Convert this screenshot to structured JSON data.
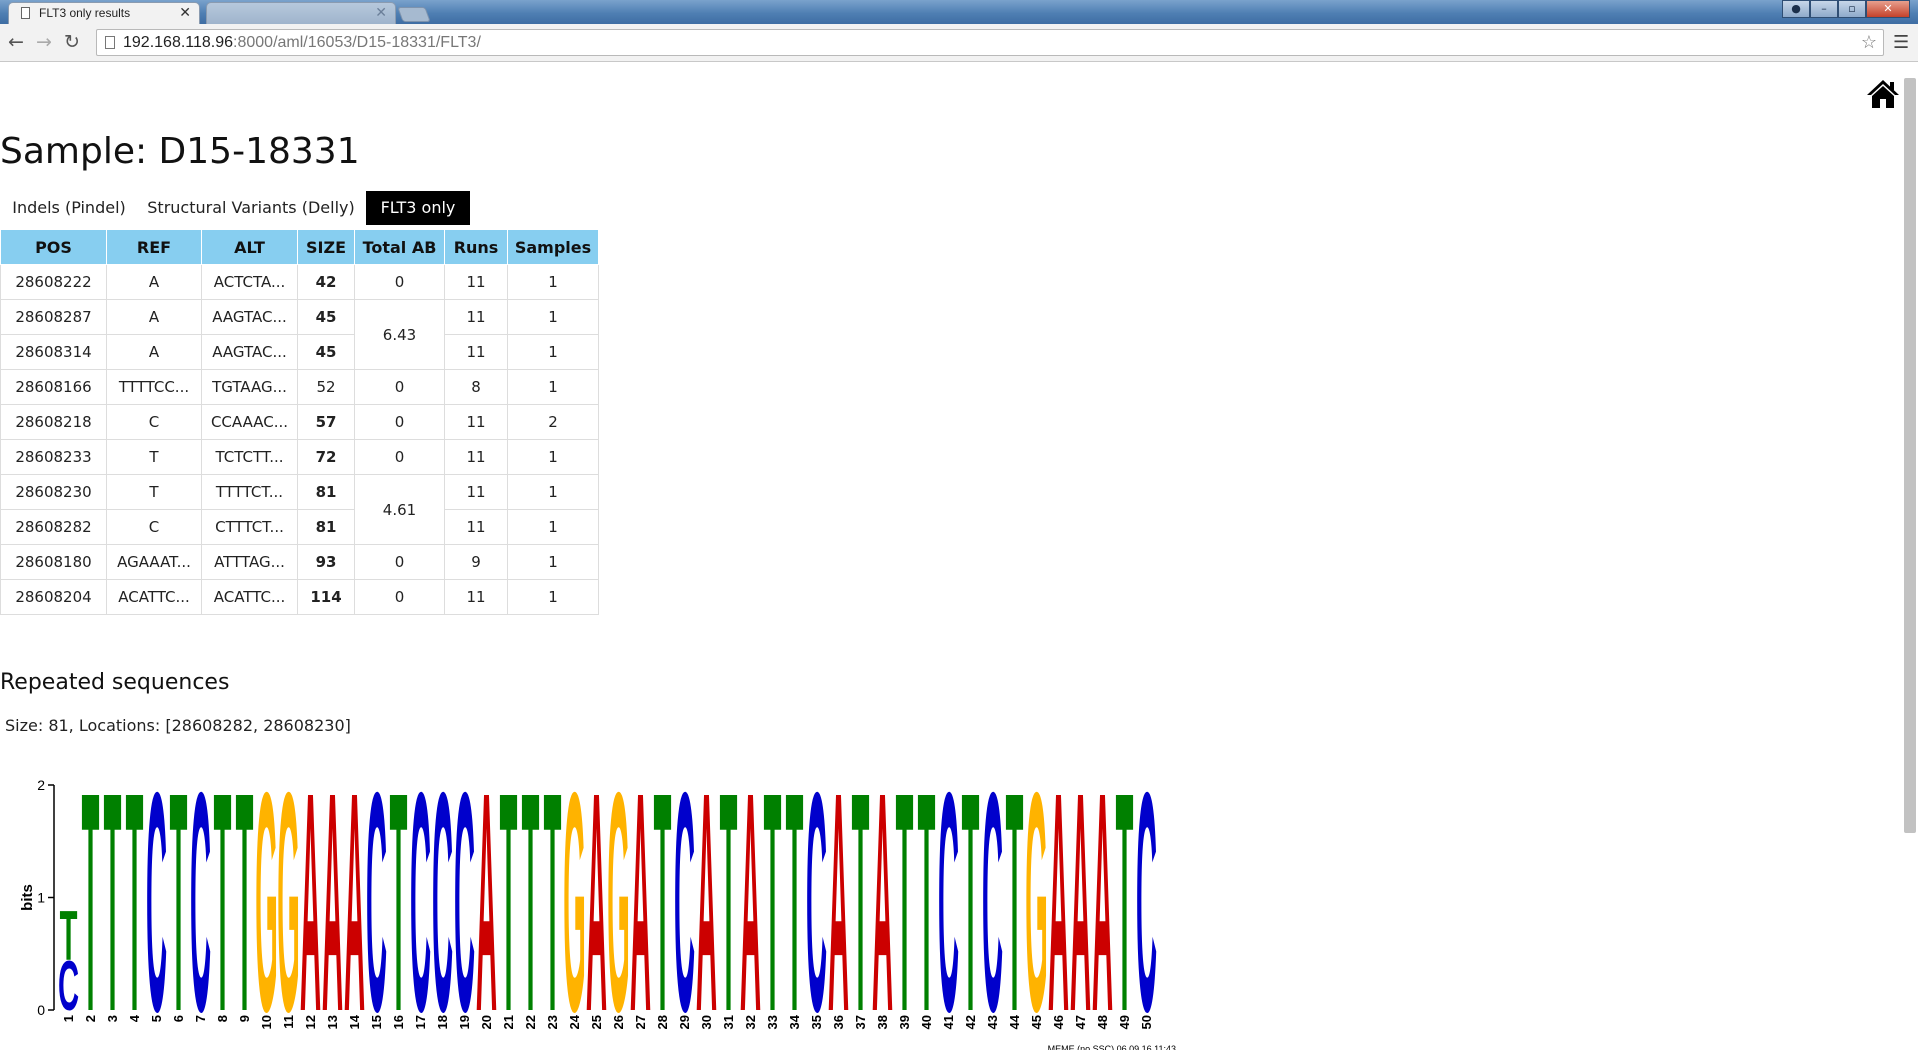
{
  "browser": {
    "active_tab_title": "FLT3 only results",
    "inactive_tab_title": "",
    "tab_close": "✕",
    "url_host": "192.168.118.96",
    "url_rest": ":8000/aml/16053/D15-18331/FLT3/",
    "back_icon": "back-arrow-icon",
    "forward_icon": "forward-arrow-icon",
    "reload_icon": "reload-icon",
    "star_icon": "star-icon",
    "menu_icon": "hamburger-menu-icon"
  },
  "page": {
    "title": "Sample: D15-18331",
    "home_icon": "home-icon",
    "tabs": [
      {
        "label": "Indels (Pindel)",
        "active": false
      },
      {
        "label": "Structural Variants (Delly)",
        "active": false
      },
      {
        "label": "FLT3 only",
        "active": true
      }
    ],
    "table": {
      "headers": [
        "POS",
        "REF",
        "ALT",
        "SIZE",
        "Total AB",
        "Runs",
        "Samples"
      ],
      "rows": [
        {
          "pos": "28608222",
          "ref": "A",
          "alt": "ACTCTA...",
          "size": "42",
          "size_link": true,
          "total_ab": "0",
          "runs": "11",
          "samples": "1"
        },
        {
          "pos": "28608287",
          "ref": "A",
          "alt": "AAGTAC...",
          "size": "45",
          "size_link": true,
          "total_ab": "6.43",
          "runs": "11",
          "samples": "1"
        },
        {
          "pos": "28608314",
          "ref": "A",
          "alt": "AAGTAC...",
          "size": "45",
          "size_link": true,
          "total_ab": "",
          "runs": "11",
          "samples": "1"
        },
        {
          "pos": "28608166",
          "ref": "TTTTCC...",
          "alt": "TGTAAG...",
          "size": "52",
          "size_link": false,
          "total_ab": "0",
          "runs": "8",
          "samples": "1"
        },
        {
          "pos": "28608218",
          "ref": "C",
          "alt": "CCAAAC...",
          "size": "57",
          "size_link": true,
          "total_ab": "0",
          "runs": "11",
          "samples": "2"
        },
        {
          "pos": "28608233",
          "ref": "T",
          "alt": "TCTCTT...",
          "size": "72",
          "size_link": true,
          "total_ab": "0",
          "runs": "11",
          "samples": "1"
        },
        {
          "pos": "28608230",
          "ref": "T",
          "alt": "TTTTCT...",
          "size": "81",
          "size_link": true,
          "total_ab": "4.61",
          "runs": "11",
          "samples": "1"
        },
        {
          "pos": "28608282",
          "ref": "C",
          "alt": "CTTTCT...",
          "size": "81",
          "size_link": true,
          "total_ab": "",
          "runs": "11",
          "samples": "1"
        },
        {
          "pos": "28608180",
          "ref": "AGAAAT...",
          "alt": "ATTTAG...",
          "size": "93",
          "size_link": true,
          "total_ab": "0",
          "runs": "9",
          "samples": "1"
        },
        {
          "pos": "28608204",
          "ref": "ACATTC...",
          "alt": "ACATTC...",
          "size": "114",
          "size_link": true,
          "total_ab": "0",
          "runs": "11",
          "samples": "1"
        }
      ]
    },
    "repeated": {
      "heading": "Repeated sequences",
      "info": "Size: 81, Locations: [28608282, 28608230]"
    }
  },
  "colors": {
    "header_bg": "#87cef0",
    "link": "#1a5a96",
    "A": "#cc0000",
    "C": "#0000cc",
    "G": "#ffb300",
    "T": "#008000"
  },
  "chart_data": {
    "type": "sequence-logo",
    "ylabel": "bits",
    "ylim": [
      0,
      2
    ],
    "yticks": [
      "0",
      "1",
      "2"
    ],
    "footer": "MEME (no SSC) 06.09.16 11:43",
    "positions": [
      "1",
      "2",
      "3",
      "4",
      "5",
      "6",
      "7",
      "8",
      "9",
      "10",
      "11",
      "12",
      "13",
      "14",
      "15",
      "16",
      "17",
      "18",
      "19",
      "20",
      "21",
      "22",
      "23",
      "24",
      "25",
      "26",
      "27",
      "28",
      "29",
      "30",
      "31",
      "32",
      "33",
      "34",
      "35",
      "36",
      "37",
      "38",
      "39",
      "40",
      "41",
      "42",
      "43",
      "44",
      "45",
      "46",
      "47",
      "48",
      "49",
      "50"
    ],
    "consensus": [
      "T",
      "T",
      "T",
      "T",
      "C",
      "T",
      "C",
      "T",
      "T",
      "G",
      "G",
      "A",
      "A",
      "A",
      "C",
      "T",
      "C",
      "C",
      "C",
      "A",
      "T",
      "T",
      "T",
      "G",
      "A",
      "G",
      "A",
      "T",
      "C",
      "A",
      "T",
      "A",
      "T",
      "T",
      "C",
      "A",
      "T",
      "A",
      "T",
      "T",
      "C",
      "T",
      "C",
      "T",
      "G",
      "A",
      "A",
      "A",
      "T",
      "C"
    ],
    "position1_stack": [
      {
        "letter": "C",
        "bits": 0.5
      },
      {
        "letter": "T",
        "bits": 0.5
      }
    ]
  }
}
